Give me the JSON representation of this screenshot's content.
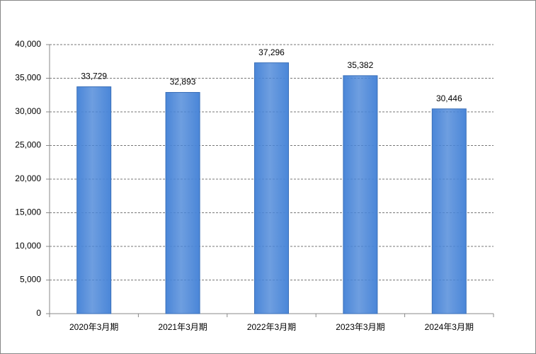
{
  "chart_data": {
    "type": "bar",
    "categories": [
      "2020年3月期",
      "2021年3月期",
      "2022年3月期",
      "2023年3月期",
      "2024年3月期"
    ],
    "values": [
      33729,
      32893,
      37296,
      35382,
      30446
    ],
    "value_labels": [
      "33,729",
      "32,893",
      "37,296",
      "35,382",
      "30,446"
    ],
    "color": "#4a86d8",
    "ylim": [
      0,
      40000
    ],
    "yticks": [
      0,
      {
        "value": 5000,
        "label": "5,000"
      },
      {
        "value": 10000,
        "label": "10,000"
      },
      {
        "value": 15000,
        "label": "15,000"
      },
      {
        "value": 20000,
        "label": "20,000"
      },
      {
        "value": 25000,
        "label": "25,000"
      },
      {
        "value": 30000,
        "label": "30,000"
      },
      {
        "value": 35000,
        "label": "35,000"
      },
      {
        "value": 40000,
        "label": "40,000"
      }
    ],
    "grid": true
  }
}
